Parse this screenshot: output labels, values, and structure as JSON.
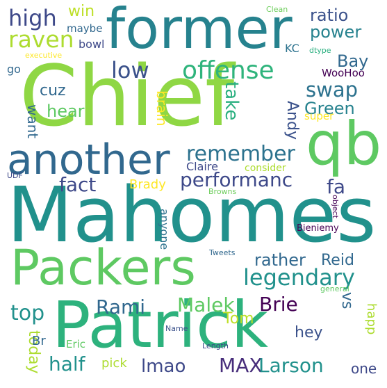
{
  "colors": {
    "background": "#ffffff",
    "palette": [
      "#440154",
      "#472d7b",
      "#3b528b",
      "#2c728e",
      "#21918c",
      "#28ae80",
      "#5ec962",
      "#addc30",
      "#fde725"
    ]
  },
  "words": {
    "chief": "Chief",
    "mahomes": "Mahomes",
    "patrick": "Patrick",
    "former": "former",
    "qb": "qb",
    "packers": "Packers",
    "another": "another",
    "high": "high",
    "win": "win",
    "maybe": "maybe",
    "raven": "raven",
    "bowl": "bowl",
    "executive": "executive",
    "go": "go",
    "clean": "Clean",
    "ratio": "ratio",
    "power": "power",
    "kc": "KC",
    "dtype": "dtype",
    "bay": "Bay",
    "woohoo": "WooHoo",
    "low": "low",
    "offense": "offense",
    "swap": "swap",
    "cuz": "cuz",
    "take": "take",
    "brain": "brain",
    "green": "Green",
    "hear": "hear",
    "want": "want",
    "andy": "Andy",
    "super": "super",
    "remember": "remember",
    "claire": "Claire",
    "consider": "consider",
    "fact": "fact",
    "brady": "Brady",
    "performanc": "performanc",
    "fa": "fa",
    "udf": "UDF",
    "browns": "Browns",
    "object": "object",
    "anyone": "anyone",
    "bieniemy": "Bieniemy",
    "legendary": "legendary",
    "tweets": "Tweets",
    "rather": "rather",
    "reid": "Reid",
    "rami": "Rami",
    "malek": "Malek",
    "brie": "Brie",
    "vs": "vs",
    "general": "general",
    "top": "top",
    "happ": "happ",
    "today": "today",
    "tom": "Tom",
    "hey": "hey",
    "br": "Br",
    "eric": "Eric",
    "name": "Name",
    "length": "Length",
    "half": "half",
    "pick": "pick",
    "lmao": "lmao",
    "max": "MAX",
    "larson": "Larson",
    "one": "one"
  }
}
